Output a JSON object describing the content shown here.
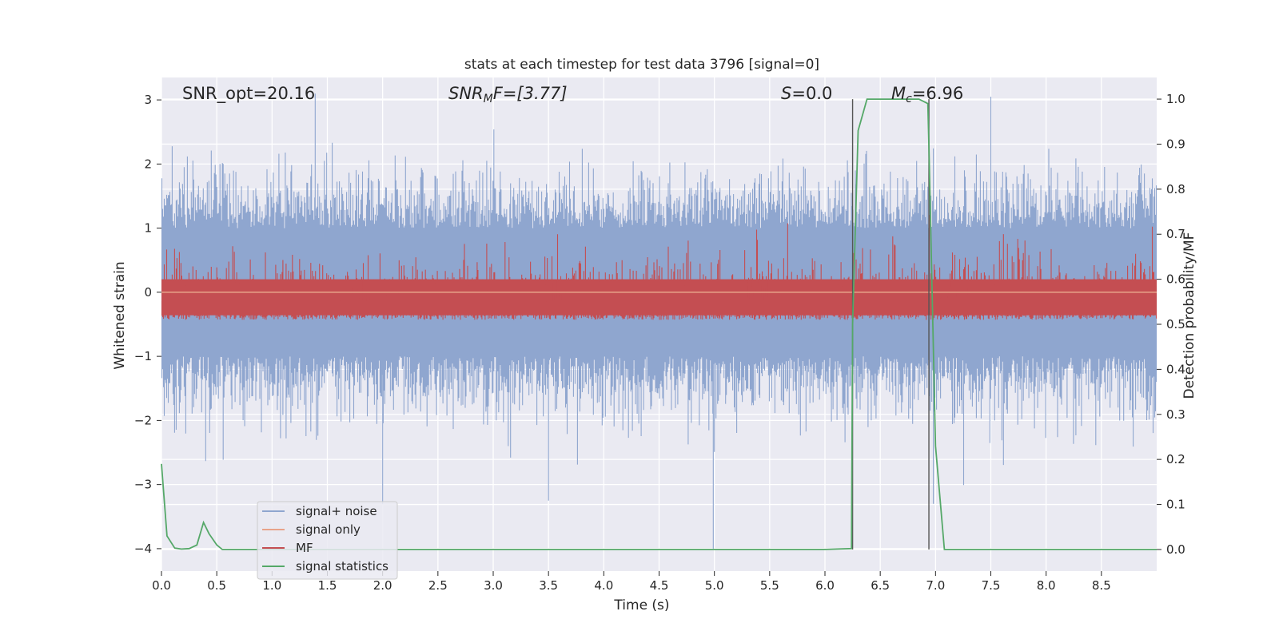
{
  "chart_data": {
    "type": "line",
    "title": "stats at each timestep for test data 3796 [signal=0]",
    "xlabel": "Time (s)",
    "ylabel": "Whitened strain",
    "y2label": "Detection probability/MF",
    "xlim": [
      0.0,
      9.0
    ],
    "ylim": [
      -4.35,
      3.35
    ],
    "y2lim": [
      -0.048,
      1.048
    ],
    "x_ticks": [
      "0.0",
      "0.5",
      "1.0",
      "1.5",
      "2.0",
      "2.5",
      "3.0",
      "3.5",
      "4.0",
      "4.5",
      "5.0",
      "5.5",
      "6.0",
      "6.5",
      "7.0",
      "7.5",
      "8.0",
      "8.5"
    ],
    "y_ticks": [
      "3",
      "2",
      "1",
      "0",
      "−1",
      "−2",
      "−3",
      "−4"
    ],
    "y2_ticks": [
      "1.0",
      "0.9",
      "0.8",
      "0.7",
      "0.6",
      "0.5",
      "0.4",
      "0.3",
      "0.2",
      "0.1",
      "0.0"
    ],
    "grid": true,
    "legend_placement": "lower-left",
    "annotations": {
      "snr_opt": "SNR_opt=20.16",
      "snr_mf_main": "SNR",
      "snr_mf_sub": "M",
      "snr_mf_rest": "F=[3.77]",
      "s_main": "S",
      "s_rest": "=0.0",
      "mc_main": "M",
      "mc_sub": "c",
      "mc_rest": "=6.96"
    },
    "vertical_lines_x": [
      6.25,
      6.94
    ],
    "series": [
      {
        "name": "signal+ noise",
        "color": "#8fa6cf",
        "kind": "noise",
        "range": [
          -4.0,
          3.1
        ],
        "typical": [
          -2.0,
          2.0
        ]
      },
      {
        "name": "signal only",
        "color": "#e8a38a",
        "kind": "flat",
        "value": 0.0
      },
      {
        "name": "MF",
        "color": "#c44e52",
        "kind": "band",
        "range": [
          0.0,
          0.95
        ],
        "typical": [
          0.1,
          0.65
        ]
      },
      {
        "name": "signal statistics",
        "color": "#55a868",
        "axis": "right",
        "x": [
          0.0,
          0.05,
          0.12,
          0.18,
          0.25,
          0.32,
          0.38,
          0.43,
          0.5,
          0.55,
          0.6,
          1.0,
          2.0,
          3.0,
          4.0,
          5.0,
          6.0,
          6.24,
          6.25,
          6.3,
          6.38,
          6.5,
          6.85,
          6.93,
          6.94,
          7.0,
          7.08,
          7.2,
          8.0,
          9.0
        ],
        "y": [
          0.19,
          0.03,
          0.003,
          0.001,
          0.002,
          0.01,
          0.06,
          0.035,
          0.01,
          0.0,
          0.0,
          0.0,
          0.0,
          0.0,
          0.0,
          0.0,
          0.0,
          0.002,
          0.5,
          0.93,
          1.0,
          1.0,
          1.0,
          0.99,
          0.9,
          0.23,
          0.0,
          0.0,
          0.0,
          0.0
        ]
      }
    ]
  }
}
